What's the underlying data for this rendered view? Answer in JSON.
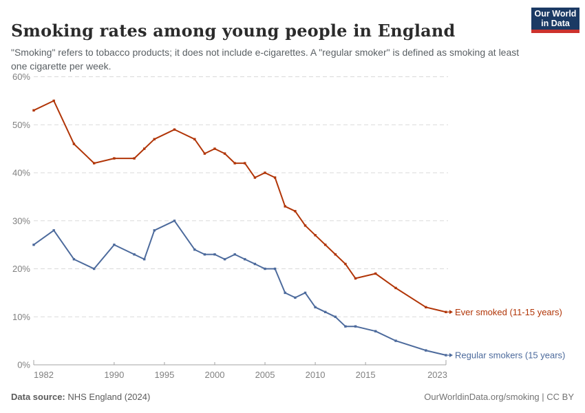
{
  "header": {
    "title": "Smoking rates among young people in England",
    "subtitle": "\"Smoking\" refers to tobacco products; it does not include e-cigarettes. A \"regular smoker\" is defined as smoking at least one cigarette per week.",
    "logo": {
      "line1": "Our World",
      "line2": "in Data",
      "bg_color": "#1b3a64",
      "bar_color": "#cd322d"
    }
  },
  "footer": {
    "datasource_label": "Data source:",
    "datasource_value": " NHS England (2024)",
    "credit": "OurWorldinData.org/smoking | CC BY"
  },
  "chart_data": {
    "type": "line",
    "title": "Smoking rates among young people in England",
    "xlabel": "",
    "ylabel": "",
    "x_range": [
      1982,
      2023
    ],
    "ylim": [
      0,
      60
    ],
    "y_tick_suffix": "%",
    "y_ticks": [
      0,
      10,
      20,
      30,
      40,
      50,
      60
    ],
    "x_ticks": [
      1982,
      1990,
      1995,
      2000,
      2005,
      2010,
      2015,
      2023
    ],
    "grid": "horizontal-dashed",
    "grid_color": "#d9d9d9",
    "axis_color": "#a3a3a3",
    "tick_label_color": "#808080",
    "legend_position": "end-of-line labels",
    "series": [
      {
        "name": "Ever smoked (11-15 years)",
        "color": "#B13507",
        "points": [
          [
            1982,
            53
          ],
          [
            1984,
            55
          ],
          [
            1986,
            46
          ],
          [
            1988,
            42
          ],
          [
            1990,
            43
          ],
          [
            1992,
            43
          ],
          [
            1993,
            45
          ],
          [
            1994,
            47
          ],
          [
            1996,
            49
          ],
          [
            1998,
            47
          ],
          [
            1999,
            44
          ],
          [
            2000,
            45
          ],
          [
            2001,
            44
          ],
          [
            2002,
            42
          ],
          [
            2003,
            42
          ],
          [
            2004,
            39
          ],
          [
            2005,
            40
          ],
          [
            2006,
            39
          ],
          [
            2007,
            33
          ],
          [
            2008,
            32
          ],
          [
            2009,
            29
          ],
          [
            2010,
            27
          ],
          [
            2011,
            25
          ],
          [
            2012,
            23
          ],
          [
            2013,
            21
          ],
          [
            2014,
            18
          ],
          [
            2016,
            19
          ],
          [
            2018,
            16
          ],
          [
            2021,
            12
          ],
          [
            2023,
            11
          ]
        ]
      },
      {
        "name": "Regular smokers (15 years)",
        "color": "#4C6A9C",
        "points": [
          [
            1982,
            25
          ],
          [
            1984,
            28
          ],
          [
            1986,
            22
          ],
          [
            1988,
            20
          ],
          [
            1990,
            25
          ],
          [
            1992,
            23
          ],
          [
            1993,
            22
          ],
          [
            1994,
            28
          ],
          [
            1996,
            30
          ],
          [
            1998,
            24
          ],
          [
            1999,
            23
          ],
          [
            2000,
            23
          ],
          [
            2001,
            22
          ],
          [
            2002,
            23
          ],
          [
            2003,
            22
          ],
          [
            2004,
            21
          ],
          [
            2005,
            20
          ],
          [
            2006,
            20
          ],
          [
            2007,
            15
          ],
          [
            2008,
            14
          ],
          [
            2009,
            15
          ],
          [
            2010,
            12
          ],
          [
            2011,
            11
          ],
          [
            2012,
            10
          ],
          [
            2013,
            8
          ],
          [
            2014,
            8
          ],
          [
            2016,
            7
          ],
          [
            2018,
            5
          ],
          [
            2021,
            3
          ],
          [
            2023,
            2
          ]
        ]
      }
    ]
  }
}
